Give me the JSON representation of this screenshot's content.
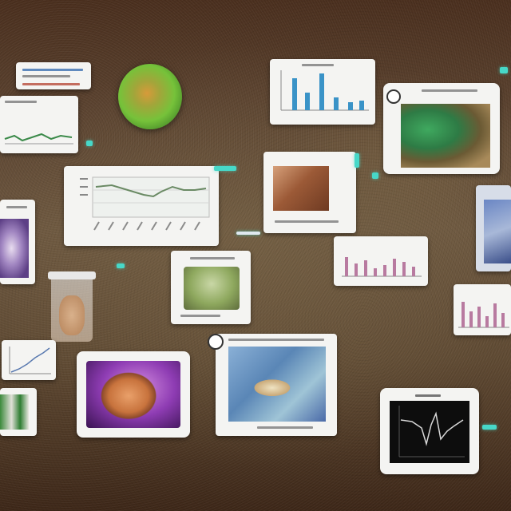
{
  "board": {
    "background": "#5b4330",
    "accent": "#47d8c8"
  },
  "cards": [
    {
      "name": "top-left-caption-card",
      "kind": "text"
    },
    {
      "name": "top-left-line-chart-card",
      "kind": "chart"
    },
    {
      "name": "green-fruit-photo",
      "kind": "photo"
    },
    {
      "name": "line-chart-card-large",
      "kind": "chart"
    },
    {
      "name": "bar-chart-card-top",
      "kind": "chart"
    },
    {
      "name": "green-leaf-photo-card",
      "kind": "photo"
    },
    {
      "name": "brown-specimen-photo-card",
      "kind": "photo"
    },
    {
      "name": "pink-bar-chart-card",
      "kind": "chart"
    },
    {
      "name": "purple-swirl-photo-card",
      "kind": "photo"
    },
    {
      "name": "green-bowl-photo-card",
      "kind": "photo"
    },
    {
      "name": "glass-specimen-jar",
      "kind": "photo"
    },
    {
      "name": "small-line-chart-card",
      "kind": "chart"
    },
    {
      "name": "bottom-left-plant-card",
      "kind": "photo"
    },
    {
      "name": "pink-egg-photo-card",
      "kind": "photo"
    },
    {
      "name": "blue-bird-photo-card",
      "kind": "photo"
    },
    {
      "name": "dark-waveform-card",
      "kind": "chart"
    },
    {
      "name": "right-edge-bar-chart-card",
      "kind": "chart"
    },
    {
      "name": "right-edge-blue-photo-card",
      "kind": "photo"
    }
  ]
}
